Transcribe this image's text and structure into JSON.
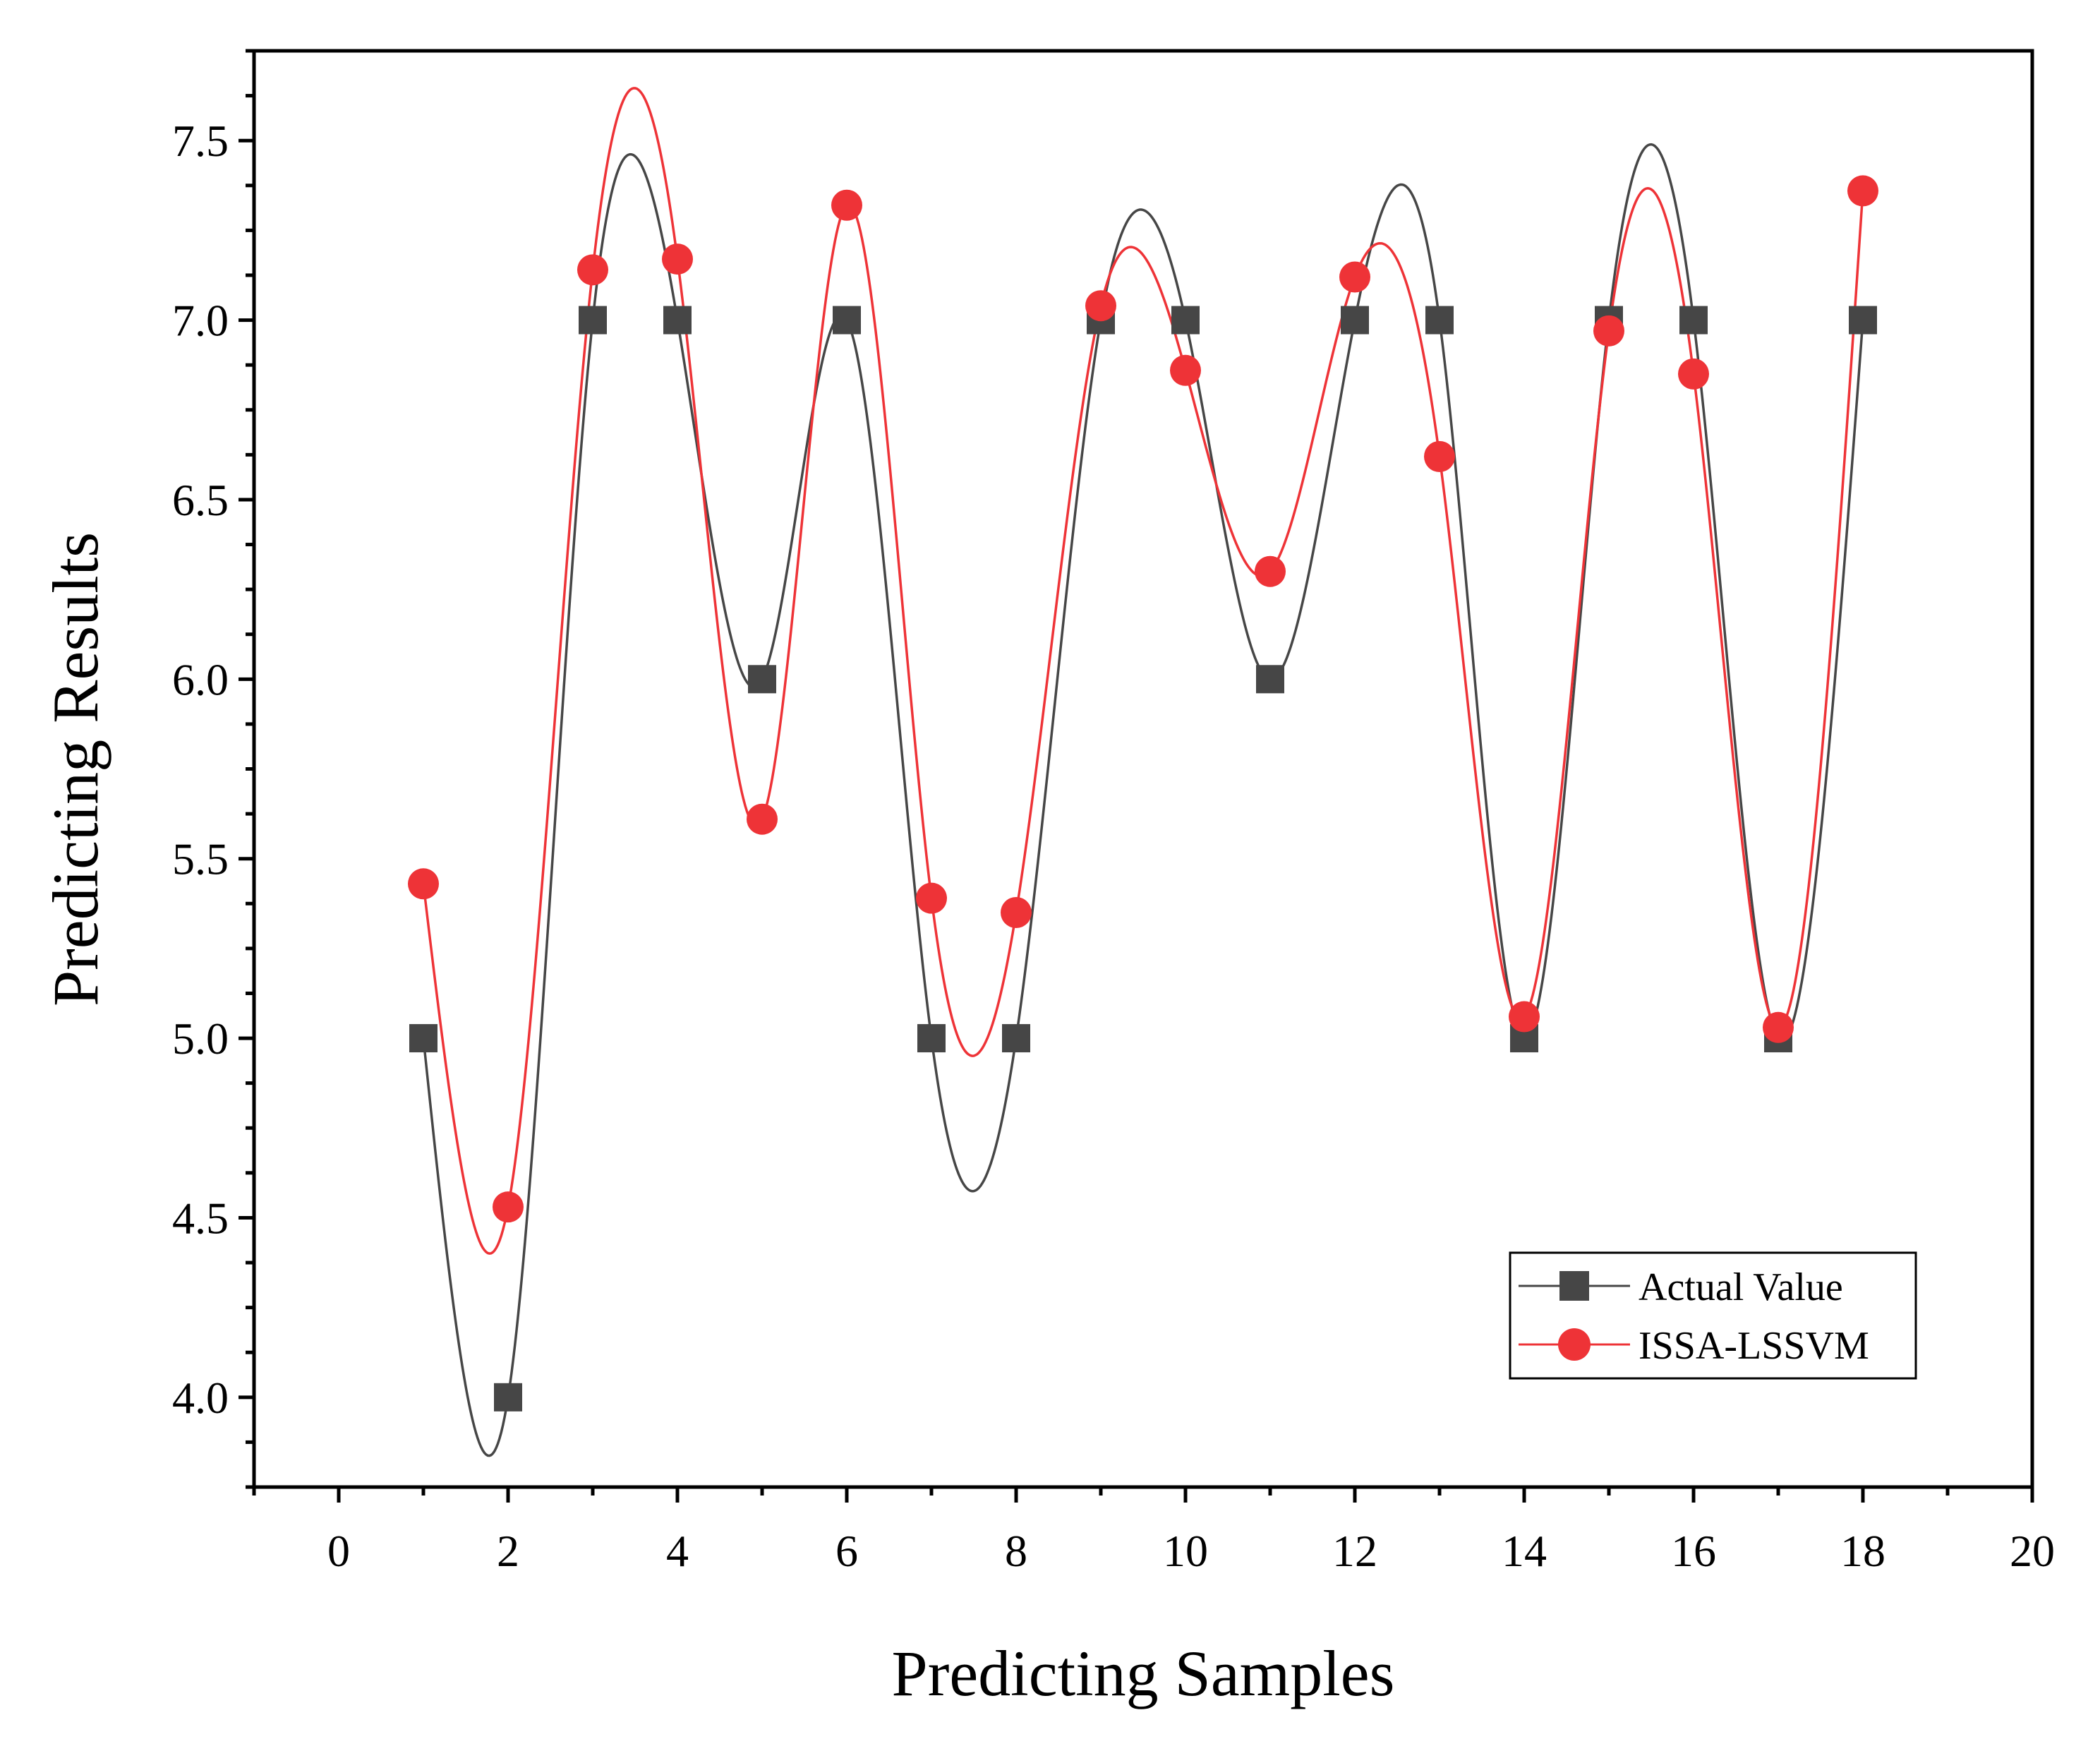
{
  "chart_data": {
    "type": "line",
    "xlabel": "Predicting Samples",
    "ylabel": "Predicting Results",
    "xlim": [
      -1,
      20
    ],
    "ylim": [
      3.75,
      7.75
    ],
    "xticks": [
      0,
      2,
      4,
      6,
      8,
      10,
      12,
      14,
      16,
      18,
      20
    ],
    "yticks": [
      4.0,
      4.5,
      5.0,
      5.5,
      6.0,
      6.5,
      7.0,
      7.5
    ],
    "ytick_labels": [
      "4.0",
      "4.5",
      "5.0",
      "5.5",
      "6.0",
      "6.5",
      "7.0",
      "7.5"
    ],
    "legend_position": "bottom-right",
    "x": [
      1,
      2,
      3,
      4,
      5,
      6,
      7,
      8,
      9,
      10,
      11,
      12,
      13,
      14,
      15,
      16,
      17,
      18
    ],
    "series": [
      {
        "name": "Actual Value",
        "marker": "square",
        "color": "#464646",
        "values": [
          5.0,
          4.0,
          7.0,
          7.0,
          6.0,
          7.0,
          5.0,
          5.0,
          7.0,
          7.0,
          6.0,
          7.0,
          7.0,
          5.0,
          7.0,
          7.0,
          5.0,
          7.0
        ]
      },
      {
        "name": "ISSA-LSSVM",
        "marker": "circle",
        "color": "#ee3337",
        "values": [
          5.43,
          4.53,
          7.14,
          7.17,
          5.61,
          7.32,
          5.39,
          5.35,
          7.04,
          6.86,
          6.3,
          7.12,
          6.62,
          5.06,
          6.97,
          6.85,
          5.03,
          7.36
        ]
      }
    ]
  }
}
